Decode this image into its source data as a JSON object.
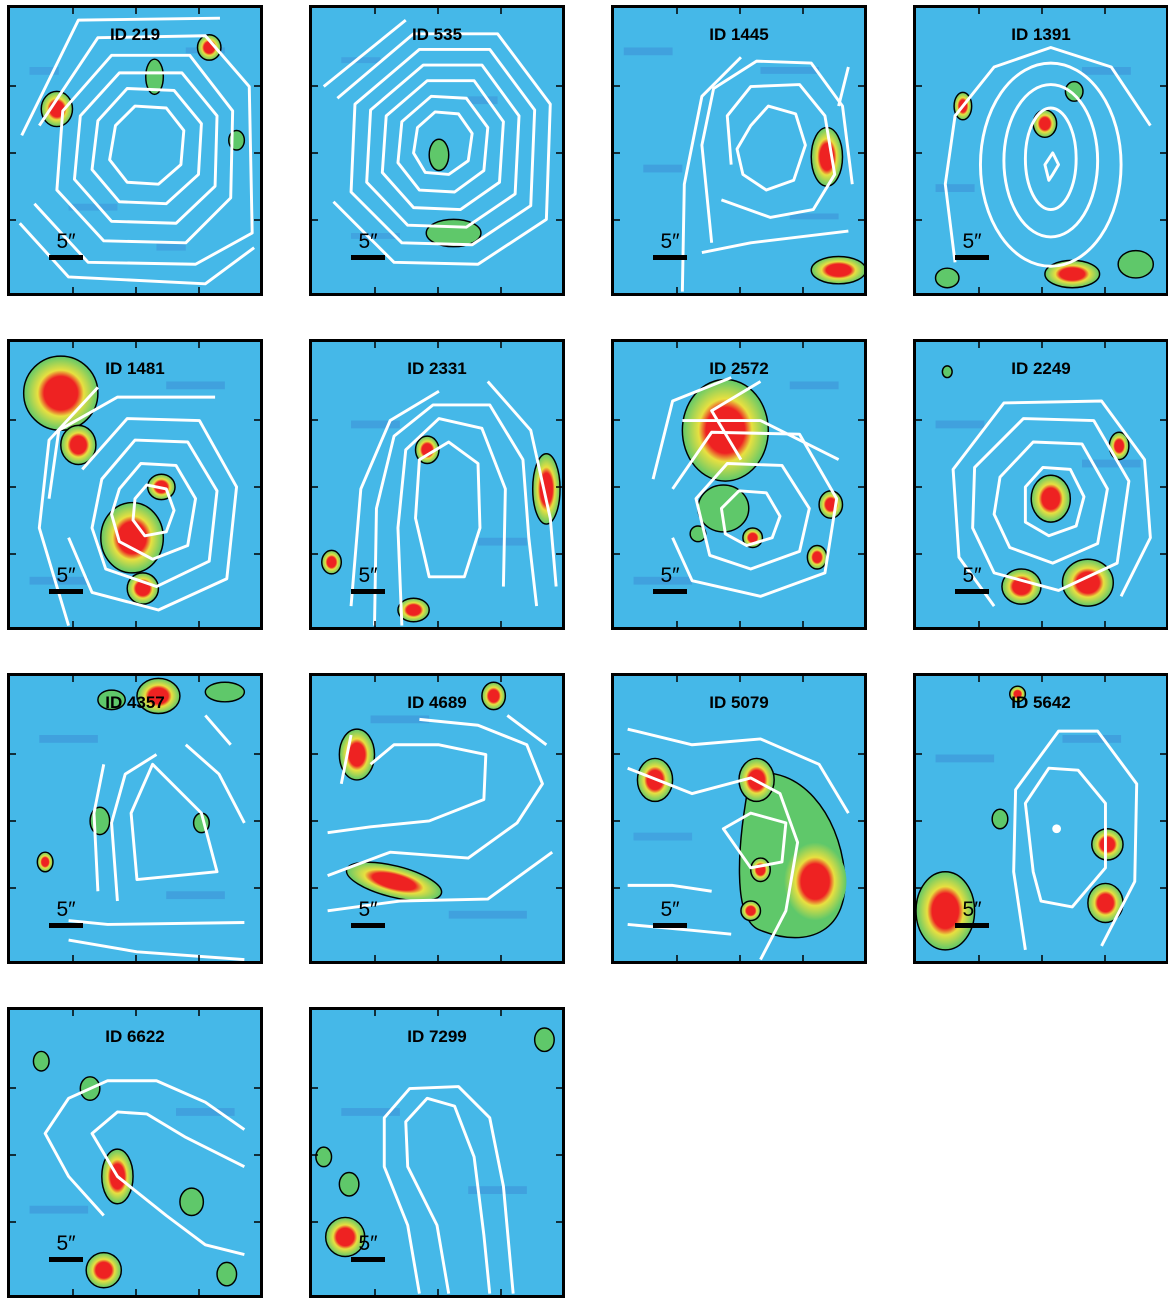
{
  "figure": {
    "panels": [
      {
        "label": "ID 219",
        "scale_label": "5″"
      },
      {
        "label": "ID 535",
        "scale_label": "5″"
      },
      {
        "label": "ID 1445",
        "scale_label": "5″"
      },
      {
        "label": "ID 1391",
        "scale_label": "5″"
      },
      {
        "label": "ID 1481",
        "scale_label": "5″"
      },
      {
        "label": "ID 2331",
        "scale_label": "5″"
      },
      {
        "label": "ID 2572",
        "scale_label": "5″"
      },
      {
        "label": "ID 2249",
        "scale_label": "5″"
      },
      {
        "label": "ID 4357",
        "scale_label": "5″"
      },
      {
        "label": "ID 4689",
        "scale_label": "5″"
      },
      {
        "label": "ID 5079",
        "scale_label": "5″"
      },
      {
        "label": "ID 5642",
        "scale_label": "5″"
      },
      {
        "label": "ID 6622",
        "scale_label": "5″"
      },
      {
        "label": "ID 7299",
        "scale_label": "5″"
      }
    ],
    "colors": {
      "background": "#45b8e8",
      "noise_dark": "#3a7fd0",
      "source_outer": "#5fc86a",
      "source_mid": "#e8e040",
      "source_core": "#ee2222",
      "contour_outline": "#000000",
      "overlay_contour": "#ffffff",
      "frame": "#000000"
    }
  }
}
